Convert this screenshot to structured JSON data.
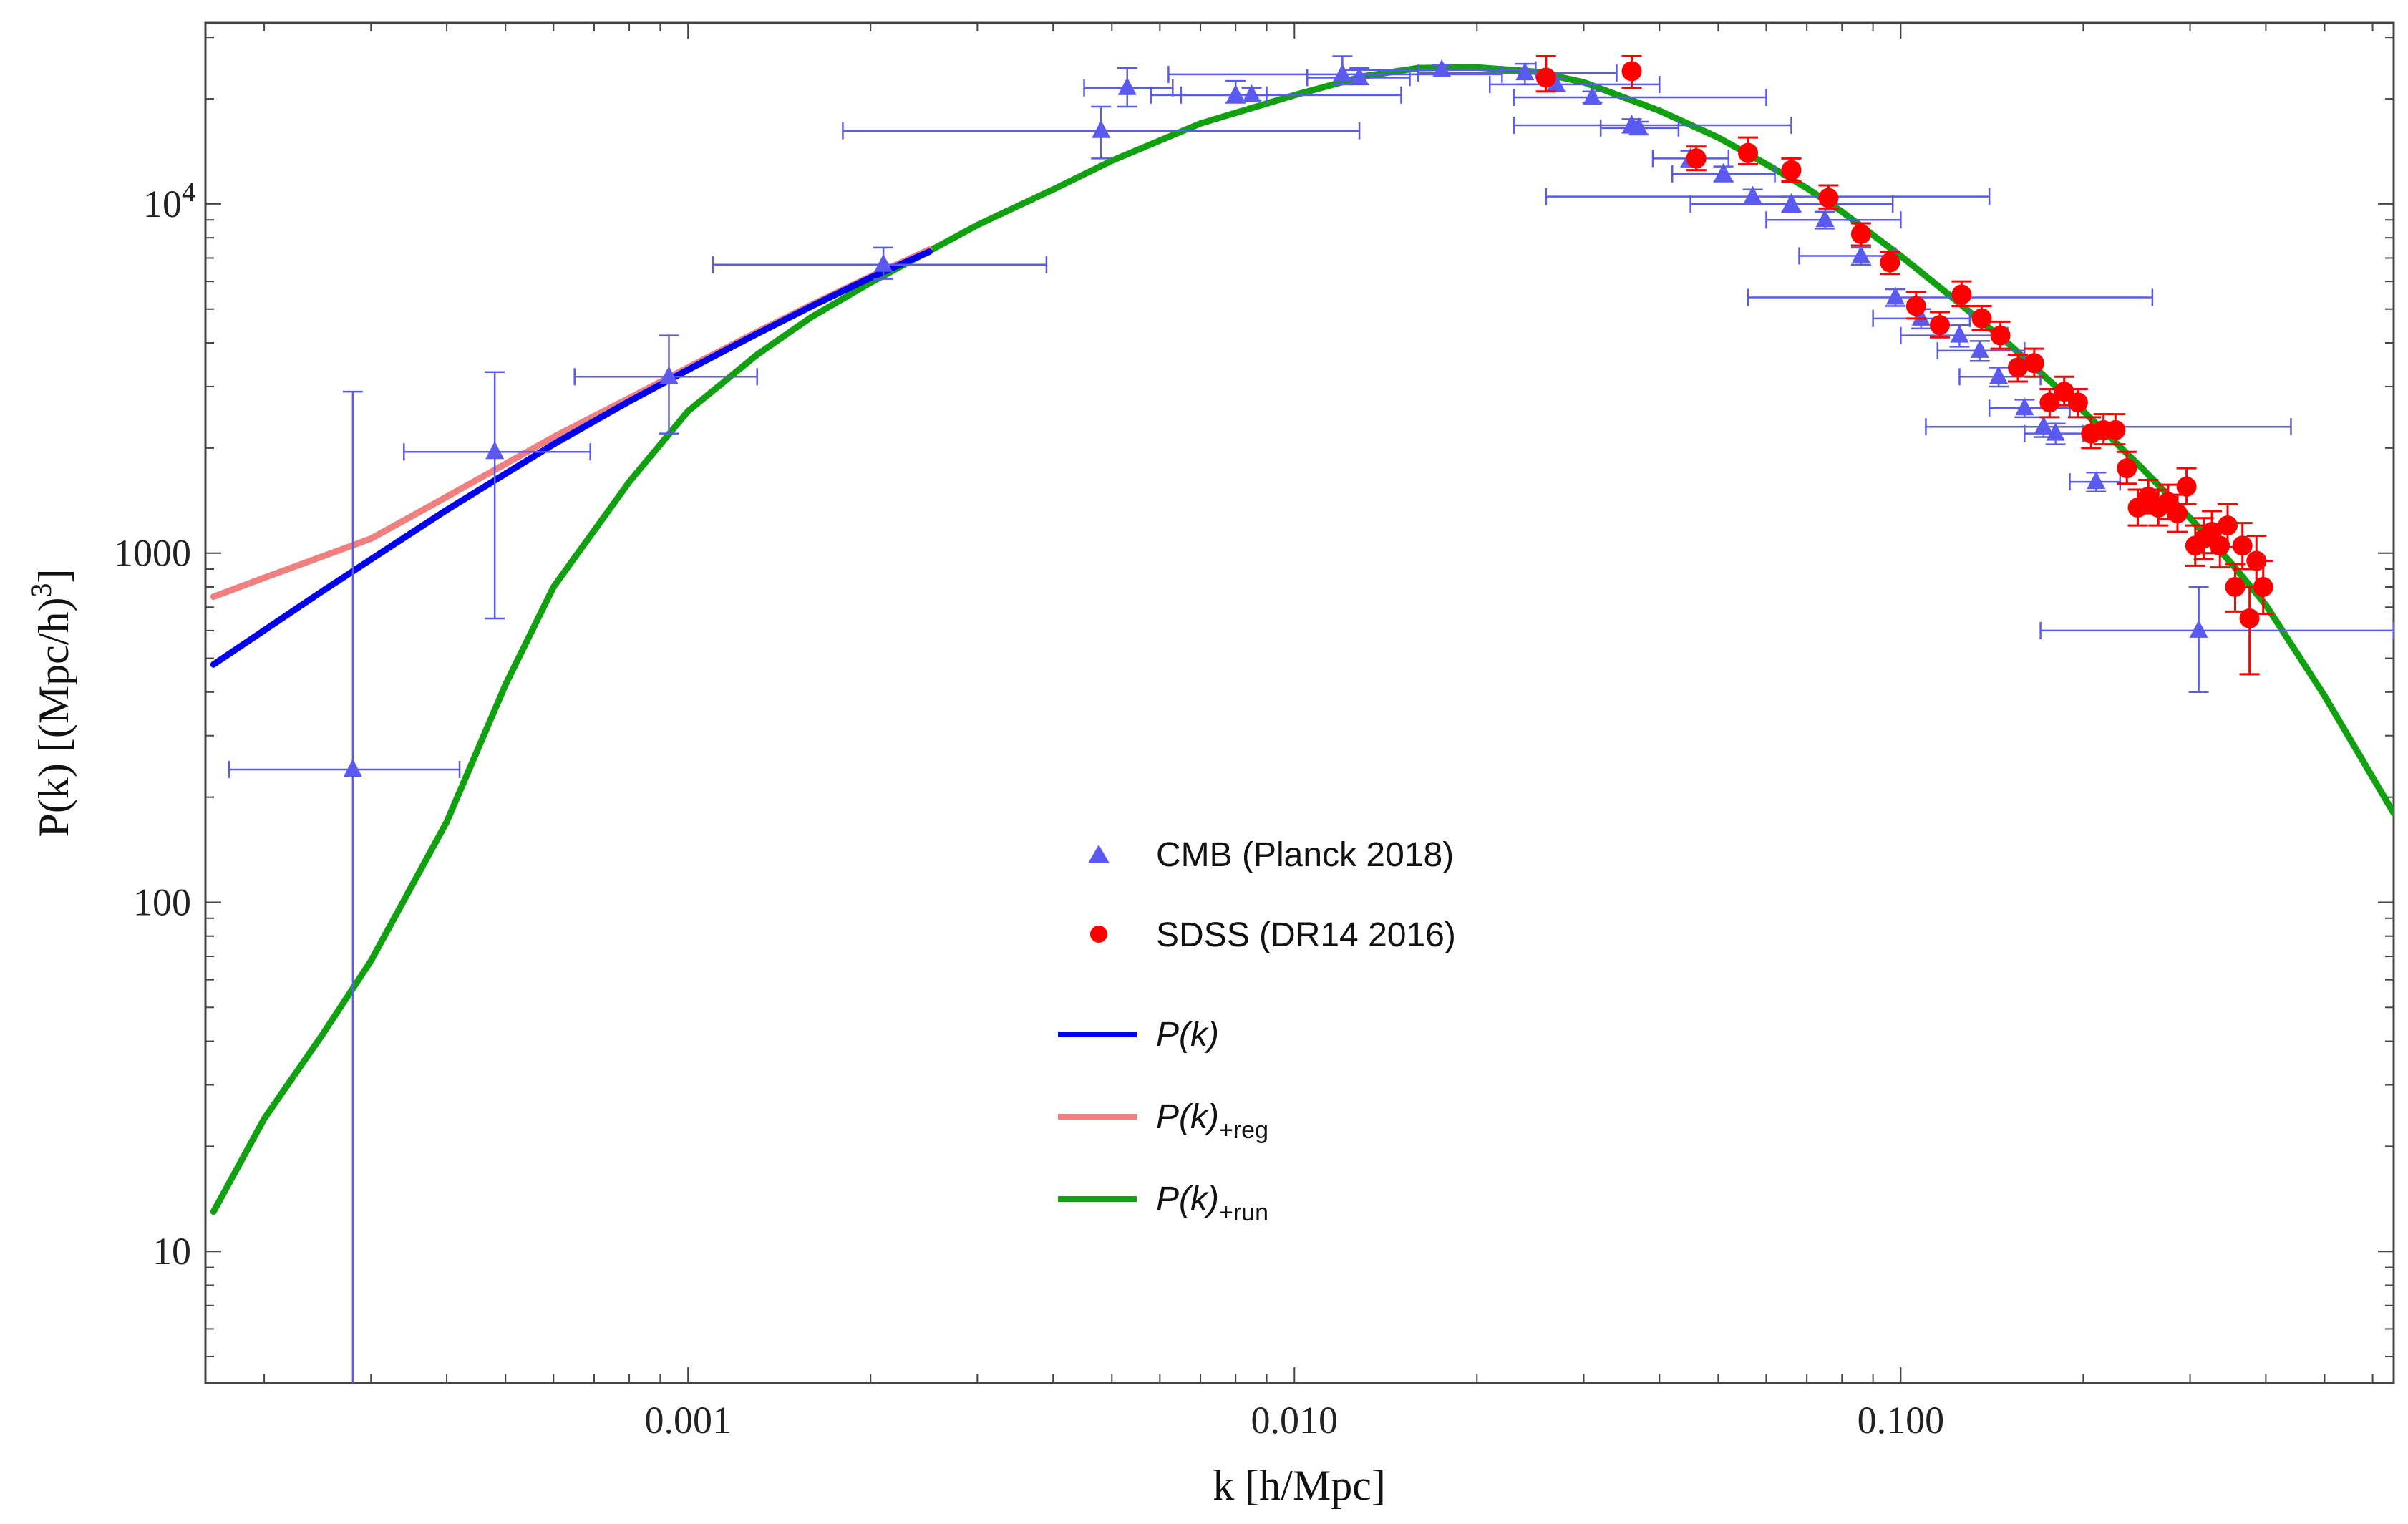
{
  "chart_data": {
    "type": "scatter",
    "xlabel": "k [h/Mpc]",
    "ylabel_text": "P(k) [(Mpc/h)",
    "ylabel_power": "3",
    "ylabel_close": "]",
    "x_scale": "log",
    "y_scale": "log",
    "xlim": [
      0.00016,
      0.65
    ],
    "ylim": [
      4.2,
      33000
    ],
    "x_ticks": [
      {
        "value": 0.001,
        "label": "0.001"
      },
      {
        "value": 0.01,
        "label": "0.010"
      },
      {
        "value": 0.1,
        "label": "0.100"
      }
    ],
    "y_ticks": [
      {
        "value": 10,
        "label": "10"
      },
      {
        "value": 100,
        "label": "100"
      },
      {
        "value": 1000,
        "label": "1000"
      },
      {
        "value": 10000,
        "label": "10",
        "power": "4"
      }
    ],
    "grid": false,
    "legend_position": "center",
    "legend": [
      {
        "label": "CMB (Planck 2018)",
        "marker": "triangle",
        "color": "#5a5af0"
      },
      {
        "label": "SDSS (DR14 2016)",
        "marker": "circle",
        "color": "#ff0000"
      },
      {
        "label": "P(k)",
        "sub": "",
        "marker": "line",
        "color": "#0000ee"
      },
      {
        "label": "P(k)",
        "sub": "+reg",
        "marker": "line",
        "color": "#f08080"
      },
      {
        "label": "P(k)",
        "sub": "+run",
        "marker": "line",
        "color": "#10a010"
      }
    ],
    "series": [
      {
        "name": "P(k)",
        "kind": "line",
        "color": "#0000ee",
        "points": [
          [
            0.000165,
            480
          ],
          [
            0.00025,
            780
          ],
          [
            0.0004,
            1330
          ],
          [
            0.0006,
            2050
          ],
          [
            0.0008,
            2720
          ],
          [
            0.001,
            3350
          ],
          [
            0.0013,
            4250
          ],
          [
            0.0016,
            5100
          ],
          [
            0.002,
            6150
          ],
          [
            0.0025,
            7300
          ]
        ]
      },
      {
        "name": "P(k)+reg",
        "kind": "line",
        "color": "#f08080",
        "points": [
          [
            0.000165,
            750
          ],
          [
            0.0002,
            850
          ],
          [
            0.0003,
            1100
          ],
          [
            0.0004,
            1450
          ],
          [
            0.0006,
            2150
          ],
          [
            0.0008,
            2780
          ],
          [
            0.001,
            3400
          ],
          [
            0.0013,
            4300
          ],
          [
            0.0016,
            5150
          ],
          [
            0.002,
            6200
          ],
          [
            0.0025,
            7400
          ]
        ]
      },
      {
        "name": "P(k)+run",
        "kind": "line",
        "color": "#10a010",
        "points": [
          [
            0.000165,
            13
          ],
          [
            0.0002,
            24
          ],
          [
            0.00025,
            42
          ],
          [
            0.0003,
            68
          ],
          [
            0.0004,
            170
          ],
          [
            0.0005,
            420
          ],
          [
            0.0006,
            800
          ],
          [
            0.0008,
            1600
          ],
          [
            0.001,
            2550
          ],
          [
            0.0013,
            3700
          ],
          [
            0.0016,
            4750
          ],
          [
            0.002,
            5950
          ],
          [
            0.003,
            8700
          ],
          [
            0.004,
            11000
          ],
          [
            0.005,
            13300
          ],
          [
            0.007,
            17000
          ],
          [
            0.01,
            20500
          ],
          [
            0.013,
            23200
          ],
          [
            0.016,
            24500
          ],
          [
            0.02,
            24600
          ],
          [
            0.025,
            23900
          ],
          [
            0.03,
            22300
          ],
          [
            0.04,
            18500
          ],
          [
            0.05,
            15500
          ],
          [
            0.06,
            13000
          ],
          [
            0.07,
            11100
          ],
          [
            0.08,
            9500
          ],
          [
            0.1,
            7100
          ],
          [
            0.12,
            5500
          ],
          [
            0.15,
            4000
          ],
          [
            0.2,
            2550
          ],
          [
            0.25,
            1750
          ],
          [
            0.3,
            1260
          ],
          [
            0.35,
            940
          ],
          [
            0.4,
            710
          ],
          [
            0.5,
            390
          ],
          [
            0.65,
            180
          ]
        ]
      },
      {
        "name": "CMB (Planck 2018)",
        "kind": "points",
        "marker": "triangle",
        "color": "#5a5af0",
        "points": [
          {
            "x": 0.00028,
            "y": 240,
            "xlo": 0.000175,
            "xhi": 0.00042,
            "ylo": 4,
            "yhi": 2900
          },
          {
            "x": 0.00048,
            "y": 1950,
            "xlo": 0.00034,
            "xhi": 0.00069,
            "ylo": 650,
            "yhi": 3300
          },
          {
            "x": 0.00093,
            "y": 3200,
            "xlo": 0.00065,
            "xhi": 0.0013,
            "ylo": 2200,
            "yhi": 4200
          },
          {
            "x": 0.0021,
            "y": 6700,
            "xlo": 0.0011,
            "xhi": 0.0039,
            "ylo": 6100,
            "yhi": 7500
          },
          {
            "x": 0.0048,
            "y": 16200,
            "xlo": 0.0018,
            "xhi": 0.0128,
            "ylo": 13500,
            "yhi": 19000
          },
          {
            "x": 0.0053,
            "y": 21500,
            "xlo": 0.0045,
            "xhi": 0.0063,
            "ylo": 19000,
            "yhi": 24500
          },
          {
            "x": 0.008,
            "y": 20500,
            "xlo": 0.0065,
            "xhi": 0.009,
            "ylo": 19500,
            "yhi": 22500
          },
          {
            "x": 0.0085,
            "y": 20500,
            "xlo": 0.0058,
            "xhi": 0.015,
            "ylo": 19800,
            "yhi": 21500
          },
          {
            "x": 0.012,
            "y": 23500,
            "xlo": 0.0062,
            "xhi": 0.022,
            "ylo": 22000,
            "yhi": 26500
          },
          {
            "x": 0.0128,
            "y": 23000,
            "xlo": 0.0105,
            "xhi": 0.0155,
            "ylo": 22000,
            "yhi": 24500
          },
          {
            "x": 0.0175,
            "y": 24200,
            "xlo": 0.012,
            "xhi": 0.025,
            "ylo": 23500,
            "yhi": 25000
          },
          {
            "x": 0.024,
            "y": 23700,
            "xlo": 0.016,
            "xhi": 0.034,
            "ylo": 22000,
            "yhi": 25200
          },
          {
            "x": 0.027,
            "y": 22000,
            "xlo": 0.021,
            "xhi": 0.04,
            "ylo": 21000,
            "yhi": 23000
          },
          {
            "x": 0.031,
            "y": 20200,
            "xlo": 0.023,
            "xhi": 0.06,
            "ylo": 19500,
            "yhi": 21000
          },
          {
            "x": 0.036,
            "y": 16800,
            "xlo": 0.023,
            "xhi": 0.066,
            "ylo": 16000,
            "yhi": 17500
          },
          {
            "x": 0.037,
            "y": 16500,
            "xlo": 0.032,
            "xhi": 0.043,
            "ylo": 15800,
            "yhi": 17200
          },
          {
            "x": 0.045,
            "y": 13500,
            "xlo": 0.039,
            "xhi": 0.052,
            "ylo": 12800,
            "yhi": 14200
          },
          {
            "x": 0.051,
            "y": 12200,
            "xlo": 0.042,
            "xhi": 0.062,
            "ylo": 11600,
            "yhi": 12800
          },
          {
            "x": 0.057,
            "y": 10500,
            "xlo": 0.026,
            "xhi": 0.14,
            "ylo": 10000,
            "yhi": 11000
          },
          {
            "x": 0.066,
            "y": 10000,
            "xlo": 0.045,
            "xhi": 0.097,
            "ylo": 9500,
            "yhi": 10500
          },
          {
            "x": 0.075,
            "y": 9000,
            "xlo": 0.06,
            "xhi": 0.1,
            "ylo": 8500,
            "yhi": 9500
          },
          {
            "x": 0.086,
            "y": 7100,
            "xlo": 0.068,
            "xhi": 0.098,
            "ylo": 6700,
            "yhi": 7500
          },
          {
            "x": 0.098,
            "y": 5400,
            "xlo": 0.056,
            "xhi": 0.26,
            "ylo": 5100,
            "yhi": 5700
          },
          {
            "x": 0.108,
            "y": 4700,
            "xlo": 0.09,
            "xhi": 0.13,
            "ylo": 4400,
            "yhi": 5000
          },
          {
            "x": 0.125,
            "y": 4200,
            "xlo": 0.1,
            "xhi": 0.15,
            "ylo": 3900,
            "yhi": 4500
          },
          {
            "x": 0.135,
            "y": 3800,
            "xlo": 0.115,
            "xhi": 0.16,
            "ylo": 3550,
            "yhi": 4050
          },
          {
            "x": 0.145,
            "y": 3200,
            "xlo": 0.125,
            "xhi": 0.17,
            "ylo": 3000,
            "yhi": 3400
          },
          {
            "x": 0.16,
            "y": 2600,
            "xlo": 0.14,
            "xhi": 0.19,
            "ylo": 2450,
            "yhi": 2750
          },
          {
            "x": 0.172,
            "y": 2300,
            "xlo": 0.11,
            "xhi": 0.44,
            "ylo": 2150,
            "yhi": 2450
          },
          {
            "x": 0.18,
            "y": 2200,
            "xlo": 0.16,
            "xhi": 0.2,
            "ylo": 2050,
            "yhi": 2350
          },
          {
            "x": 0.21,
            "y": 1600,
            "xlo": 0.19,
            "xhi": 0.23,
            "ylo": 1500,
            "yhi": 1700
          },
          {
            "x": 0.31,
            "y": 600,
            "xlo": 0.17,
            "xhi": 0.65,
            "ylo": 400,
            "yhi": 800
          }
        ]
      },
      {
        "name": "SDSS (DR14 2016)",
        "kind": "points",
        "marker": "circle",
        "color": "#ff0000",
        "points": [
          {
            "x": 0.026,
            "y": 23000,
            "ylo": 21000,
            "yhi": 26500
          },
          {
            "x": 0.036,
            "y": 24000,
            "ylo": 21500,
            "yhi": 26500
          },
          {
            "x": 0.046,
            "y": 13500,
            "ylo": 12500,
            "yhi": 14600
          },
          {
            "x": 0.056,
            "y": 14000,
            "ylo": 13000,
            "yhi": 15500
          },
          {
            "x": 0.066,
            "y": 12500,
            "ylo": 11600,
            "yhi": 13500
          },
          {
            "x": 0.076,
            "y": 10400,
            "ylo": 9700,
            "yhi": 11300
          },
          {
            "x": 0.086,
            "y": 8200,
            "ylo": 7600,
            "yhi": 8800
          },
          {
            "x": 0.096,
            "y": 6800,
            "ylo": 6300,
            "yhi": 7300
          },
          {
            "x": 0.106,
            "y": 5100,
            "ylo": 4700,
            "yhi": 5600
          },
          {
            "x": 0.116,
            "y": 4500,
            "ylo": 4150,
            "yhi": 4900
          },
          {
            "x": 0.126,
            "y": 5500,
            "ylo": 5100,
            "yhi": 6000
          },
          {
            "x": 0.136,
            "y": 4700,
            "ylo": 4350,
            "yhi": 5100
          },
          {
            "x": 0.146,
            "y": 4200,
            "ylo": 3850,
            "yhi": 4600
          },
          {
            "x": 0.156,
            "y": 3400,
            "ylo": 3100,
            "yhi": 3700
          },
          {
            "x": 0.166,
            "y": 3500,
            "ylo": 3200,
            "yhi": 3850
          },
          {
            "x": 0.176,
            "y": 2700,
            "ylo": 2450,
            "yhi": 2950
          },
          {
            "x": 0.186,
            "y": 2900,
            "ylo": 2650,
            "yhi": 3200
          },
          {
            "x": 0.196,
            "y": 2700,
            "ylo": 2450,
            "yhi": 2950
          },
          {
            "x": 0.206,
            "y": 2200,
            "ylo": 2000,
            "yhi": 2450
          },
          {
            "x": 0.216,
            "y": 2250,
            "ylo": 2050,
            "yhi": 2500
          },
          {
            "x": 0.226,
            "y": 2250,
            "ylo": 2050,
            "yhi": 2500
          },
          {
            "x": 0.236,
            "y": 1750,
            "ylo": 1580,
            "yhi": 1950
          },
          {
            "x": 0.246,
            "y": 1350,
            "ylo": 1200,
            "yhi": 1520
          },
          {
            "x": 0.256,
            "y": 1450,
            "ylo": 1300,
            "yhi": 1620
          },
          {
            "x": 0.266,
            "y": 1350,
            "ylo": 1200,
            "yhi": 1520
          },
          {
            "x": 0.276,
            "y": 1400,
            "ylo": 1250,
            "yhi": 1570
          },
          {
            "x": 0.286,
            "y": 1300,
            "ylo": 1150,
            "yhi": 1470
          },
          {
            "x": 0.296,
            "y": 1550,
            "ylo": 1380,
            "yhi": 1750
          },
          {
            "x": 0.306,
            "y": 1050,
            "ylo": 920,
            "yhi": 1200
          },
          {
            "x": 0.316,
            "y": 1100,
            "ylo": 960,
            "yhi": 1260
          },
          {
            "x": 0.326,
            "y": 1150,
            "ylo": 1000,
            "yhi": 1320
          },
          {
            "x": 0.336,
            "y": 1050,
            "ylo": 910,
            "yhi": 1210
          },
          {
            "x": 0.346,
            "y": 1200,
            "ylo": 1040,
            "yhi": 1380
          },
          {
            "x": 0.356,
            "y": 800,
            "ylo": 680,
            "yhi": 930
          },
          {
            "x": 0.366,
            "y": 1050,
            "ylo": 900,
            "yhi": 1220
          },
          {
            "x": 0.376,
            "y": 650,
            "ylo": 450,
            "yhi": 800
          },
          {
            "x": 0.386,
            "y": 950,
            "ylo": 800,
            "yhi": 1120
          },
          {
            "x": 0.396,
            "y": 800,
            "ylo": 670,
            "yhi": 950
          }
        ]
      }
    ]
  }
}
